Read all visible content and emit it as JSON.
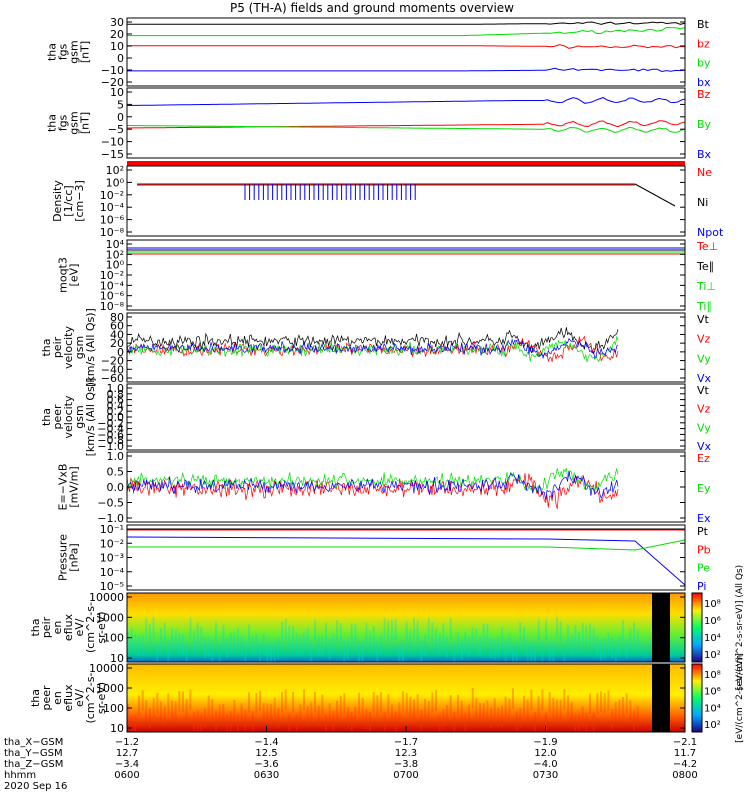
{
  "title": "P5 (TH-A) fields and ground moments overview",
  "colors": {
    "black": "#000000",
    "red": "#ff0000",
    "green": "#00dd00",
    "blue": "#0000ff"
  },
  "chart_data": [
    {
      "type": "line",
      "ylabel": [
        "tha",
        "fgs",
        "gsm",
        "[nT]"
      ],
      "ticks": [
        "30",
        "20",
        "10",
        "0",
        "−10",
        "−20"
      ],
      "series": [
        {
          "name": "Bt",
          "color": "black",
          "values": [
            [
              0,
              27
            ],
            [
              0.6,
              27
            ],
            [
              0.9,
              28
            ],
            [
              1,
              28
            ]
          ]
        },
        {
          "name": "bz",
          "color": "red",
          "values": [
            [
              0,
              10
            ],
            [
              0.6,
              10
            ],
            [
              0.9,
              9
            ],
            [
              1,
              9
            ]
          ]
        },
        {
          "name": "by",
          "color": "green",
          "values": [
            [
              0,
              18
            ],
            [
              0.6,
              18
            ],
            [
              0.9,
              22
            ],
            [
              1,
              24
            ]
          ]
        },
        {
          "name": "bx",
          "color": "blue",
          "values": [
            [
              0,
              -10
            ],
            [
              0.6,
              -10
            ],
            [
              0.9,
              -9
            ],
            [
              1,
              -10
            ]
          ]
        }
      ]
    },
    {
      "type": "line",
      "ylabel": [
        "tha",
        "fgs",
        "gsm",
        "[nT]"
      ],
      "ticks": [
        "10",
        "5",
        "0",
        "−5",
        "−10",
        "−15"
      ],
      "series": [
        {
          "name": "Bz",
          "color": "red",
          "values": [
            [
              0,
              -5
            ],
            [
              1,
              -3
            ]
          ]
        },
        {
          "name": "By",
          "color": "green",
          "values": [
            [
              0,
              -4
            ],
            [
              1,
              -6
            ]
          ]
        },
        {
          "name": "Bx",
          "color": "blue",
          "values": [
            [
              0,
              4
            ],
            [
              0.7,
              6
            ],
            [
              1,
              6
            ]
          ]
        }
      ]
    },
    {
      "type": "line",
      "ylabel": [
        "Density",
        "[1/cc]",
        "[cm−3]"
      ],
      "ticks": [
        "10²",
        "10⁰",
        "10⁻²",
        "10⁻⁴",
        "10⁻⁶",
        "10⁻⁸"
      ],
      "series": [
        {
          "name": "Ne",
          "color": "red",
          "values": []
        },
        {
          "name": "Ni",
          "color": "black",
          "values": []
        },
        {
          "name": "Npot",
          "color": "blue",
          "values": []
        }
      ]
    },
    {
      "type": "line",
      "ylabel": [
        "moqt3",
        "[eV]"
      ],
      "ticks": [
        "10⁴",
        "10²",
        "10⁰",
        "10⁻²",
        "10⁻⁴",
        "10⁻⁶",
        "10⁻⁸"
      ],
      "series": [
        {
          "name": "Te⊥",
          "color": "red",
          "values": []
        },
        {
          "name": "Te∥",
          "color": "black",
          "values": []
        },
        {
          "name": "Ti⊥",
          "color": "green",
          "values": []
        },
        {
          "name": "Ti∥",
          "color": "green",
          "values": []
        }
      ]
    },
    {
      "type": "line",
      "ylabel": [
        "tha",
        "peir",
        "velocity",
        "gsm",
        "[km/s (All Qs)]"
      ],
      "ticks": [
        "80",
        "60",
        "40",
        "20",
        "0",
        "−20",
        "−40",
        "−60"
      ],
      "series": [
        {
          "name": "Vt",
          "color": "black",
          "values": []
        },
        {
          "name": "Vz",
          "color": "red",
          "values": []
        },
        {
          "name": "Vy",
          "color": "green",
          "values": []
        },
        {
          "name": "Vx",
          "color": "blue",
          "values": []
        }
      ]
    },
    {
      "type": "line",
      "ylabel": [
        "tha",
        "peer",
        "velocity",
        "gsm",
        "[km/s (All Qs)]"
      ],
      "ticks": [
        "1.0",
        "0.8",
        "0.6",
        "0.4",
        "0.2",
        "0.0",
        "−0.2",
        "−0.4",
        "−0.6",
        "−0.8",
        "−1.0"
      ],
      "series": [
        {
          "name": "Vt",
          "color": "black",
          "values": []
        },
        {
          "name": "Vz",
          "color": "red",
          "values": []
        },
        {
          "name": "Vy",
          "color": "green",
          "values": []
        },
        {
          "name": "Vx",
          "color": "blue",
          "values": []
        }
      ]
    },
    {
      "type": "line",
      "ylabel": [
        "E=−VxB",
        "[mV/m]"
      ],
      "ticks": [
        "1.0",
        "0.5",
        "0.0",
        "−0.5",
        "−1.0"
      ],
      "series": [
        {
          "name": "Ez",
          "color": "red",
          "values": []
        },
        {
          "name": "Ey",
          "color": "green",
          "values": []
        },
        {
          "name": "Ex",
          "color": "blue",
          "values": []
        }
      ]
    },
    {
      "type": "line",
      "ylabel": [
        "Pressure",
        "[nPa]"
      ],
      "ticks": [
        "10⁻¹",
        "10⁻²",
        "10⁻³",
        "10⁻⁴",
        "10⁻⁵"
      ],
      "series": [
        {
          "name": "Pt",
          "color": "black",
          "values": []
        },
        {
          "name": "Pb",
          "color": "red",
          "values": []
        },
        {
          "name": "Pe",
          "color": "green",
          "values": []
        },
        {
          "name": "Pi",
          "color": "blue",
          "values": []
        }
      ]
    },
    {
      "type": "heatmap",
      "ylabel": [
        "tha",
        "peir",
        "en",
        "eflux",
        "eV/",
        "(cm^2-s-",
        "sr-eV)"
      ],
      "ticks": [
        "10000",
        "1000",
        "100",
        "10"
      ],
      "colorbar": {
        "label": "[eV/(cm^2-s-sr-eV)]  (All Qs)",
        "ticks": [
          "10⁸",
          "10⁶",
          "10⁴",
          "10²"
        ]
      }
    },
    {
      "type": "heatmap",
      "ylabel": [
        "tha",
        "peer",
        "en",
        "eflux",
        "eV/",
        "(cm^2-s-",
        "sr-eV)"
      ],
      "ticks": [
        "10000",
        "1000",
        "100",
        "10"
      ],
      "colorbar": {
        "label": "[eV/(cm^2-s-sr-eV)]",
        "ticks": [
          "10⁸",
          "10⁶",
          "10⁴",
          "10²"
        ]
      }
    }
  ],
  "xaxis": {
    "rows": [
      {
        "label": "tha_X−GSM",
        "values": [
          "−1.2",
          "−1.4",
          "−1.7",
          "−1.9",
          "−2.1"
        ]
      },
      {
        "label": "tha_Y−GSM",
        "values": [
          "12.7",
          "12.5",
          "12.3",
          "12.0",
          "11.7"
        ]
      },
      {
        "label": "tha_Z−GSM",
        "values": [
          "−3.4",
          "−3.6",
          "−3.8",
          "−4.0",
          "−4.2"
        ]
      },
      {
        "label": "hhmm",
        "values": [
          "0600",
          "0630",
          "0700",
          "0730",
          "0800"
        ]
      }
    ],
    "date": "2020 Sep 16"
  }
}
